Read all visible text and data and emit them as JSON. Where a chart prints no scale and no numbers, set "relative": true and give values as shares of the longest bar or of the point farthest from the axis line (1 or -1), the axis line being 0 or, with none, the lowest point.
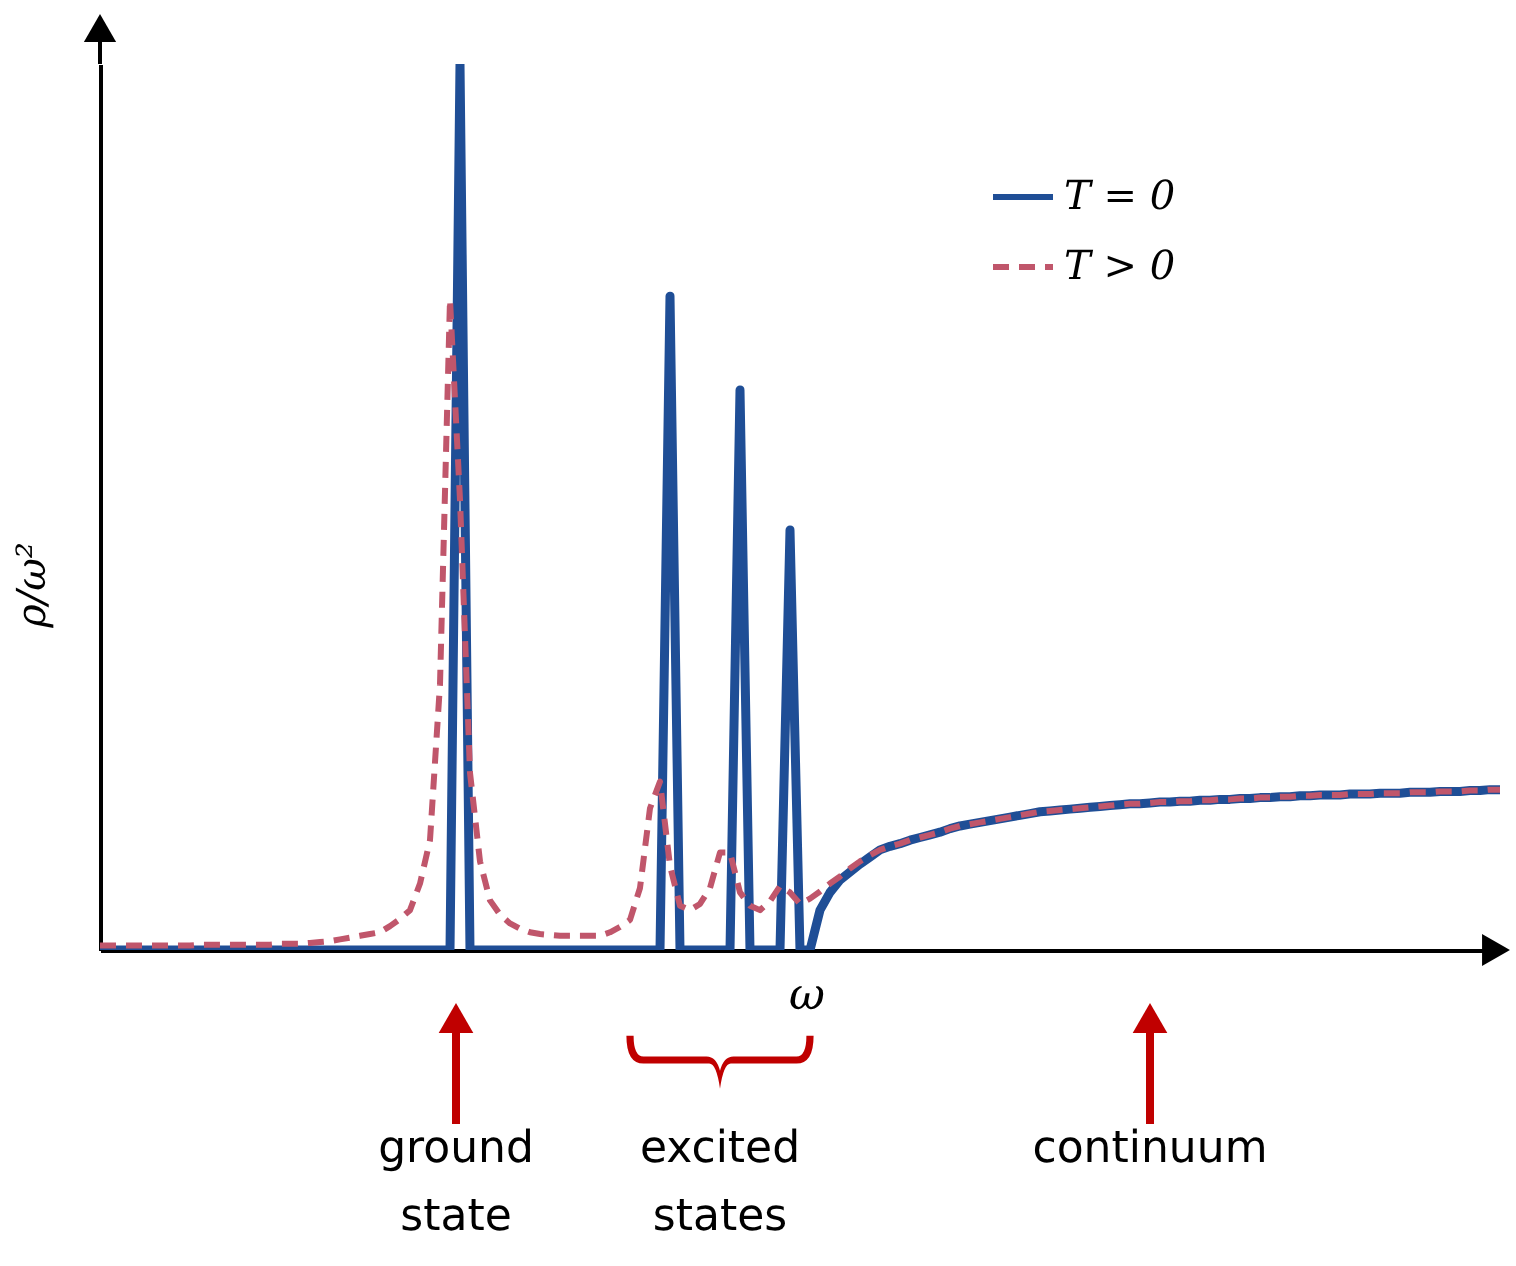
{
  "chart_data": {
    "type": "line",
    "relative": true,
    "xlabel": "ω",
    "ylabel": "ρ/ω²",
    "legend": "top right",
    "categories": [
      null,
      null,
      null,
      null,
      null,
      null,
      null,
      null,
      null,
      null,
      null,
      null,
      null,
      null,
      null,
      null,
      null,
      null,
      null,
      null,
      null,
      null,
      null,
      null,
      null,
      null,
      null,
      null,
      null,
      null,
      null,
      null,
      null,
      null,
      null,
      null,
      null,
      null,
      null,
      null,
      null,
      null,
      null,
      null,
      null,
      null,
      null,
      null,
      null,
      null,
      null,
      null,
      null,
      null,
      null,
      null,
      null,
      null,
      null,
      null,
      null,
      null,
      null,
      null,
      null,
      null,
      null,
      null,
      null,
      null,
      null,
      null,
      null,
      null,
      null,
      null,
      null,
      null,
      null,
      null,
      null,
      null,
      null,
      null,
      null,
      null,
      null,
      null,
      null,
      null,
      null,
      null,
      null,
      null,
      null,
      null,
      null,
      null,
      null,
      null,
      null,
      null,
      null,
      null,
      null,
      null,
      null,
      null,
      null,
      null,
      null,
      null,
      null,
      null,
      null,
      null,
      null,
      null,
      null,
      null,
      null,
      null,
      null,
      null,
      null,
      null,
      null,
      null,
      null,
      null,
      null,
      null,
      null,
      null,
      null,
      null,
      null,
      null,
      null,
      null,
      null
    ],
    "series": [
      {
        "name": "T = 0",
        "color": "#1f4e96",
        "line_style": "solid",
        "values": [
          0,
          0,
          0,
          0,
          0,
          0,
          0,
          0,
          0,
          0,
          0,
          0,
          0,
          0,
          0,
          0,
          0,
          0,
          0,
          0,
          0,
          0,
          0,
          0,
          0,
          0,
          0,
          0,
          0,
          0,
          0,
          0,
          0,
          0,
          0,
          0,
          1,
          0,
          0,
          0,
          0,
          0,
          0,
          0,
          0,
          0,
          0,
          0,
          0,
          0,
          0,
          0,
          0,
          0,
          0,
          0,
          0,
          0.738,
          0,
          0,
          0,
          0,
          0,
          0,
          0.632,
          0,
          0,
          0,
          0,
          0.474,
          0,
          0,
          0.045,
          0.065,
          0.079,
          0.088,
          0.097,
          0.105,
          0.113,
          0.117,
          0.12,
          0.124,
          0.127,
          0.13,
          0.133,
          0.137,
          0.14,
          0.142,
          0.144,
          0.146,
          0.148,
          0.15,
          0.152,
          0.154,
          0.156,
          0.157,
          0.158,
          0.159,
          0.16,
          0.161,
          0.162,
          0.163,
          0.164,
          0.165,
          0.165,
          0.166,
          0.167,
          0.167,
          0.168,
          0.168,
          0.169,
          0.169,
          0.17,
          0.17,
          0.171,
          0.171,
          0.172,
          0.172,
          0.173,
          0.173,
          0.174,
          0.174,
          0.175,
          0.175,
          0.175,
          0.176,
          0.176,
          0.176,
          0.177,
          0.177,
          0.177,
          0.178,
          0.178,
          0.178,
          0.179,
          0.179,
          0.179,
          0.18,
          0.18,
          0.181,
          0.181
        ]
      },
      {
        "name": "T > 0",
        "color": "#c0566b",
        "line_style": "dashed",
        "values": [
          0.005,
          0.005,
          0.005,
          0.005,
          0.005,
          0.005,
          0.005,
          0.005,
          0.005,
          0.005,
          0.006,
          0.006,
          0.006,
          0.006,
          0.006,
          0.006,
          0.006,
          0.006,
          0.007,
          0.007,
          0.007,
          0.008,
          0.009,
          0.01,
          0.012,
          0.014,
          0.016,
          0.018,
          0.02,
          0.027,
          0.035,
          0.045,
          0.075,
          0.124,
          0.3,
          0.734,
          0.508,
          0.2,
          0.1,
          0.056,
          0.04,
          0.03,
          0.024,
          0.02,
          0.018,
          0.017,
          0.016,
          0.016,
          0.016,
          0.016,
          0.016,
          0.02,
          0.026,
          0.034,
          0.07,
          0.16,
          0.19,
          0.095,
          0.05,
          0.045,
          0.052,
          0.07,
          0.11,
          0.11,
          0.065,
          0.05,
          0.045,
          0.055,
          0.072,
          0.065,
          0.052,
          0.058,
          0.066,
          0.075,
          0.083,
          0.092,
          0.1,
          0.107,
          0.113,
          0.117,
          0.12,
          0.124,
          0.127,
          0.13,
          0.133,
          0.137,
          0.14,
          0.142,
          0.144,
          0.146,
          0.148,
          0.15,
          0.152,
          0.154,
          0.156,
          0.157,
          0.158,
          0.159,
          0.16,
          0.161,
          0.162,
          0.163,
          0.164,
          0.165,
          0.165,
          0.166,
          0.167,
          0.167,
          0.168,
          0.168,
          0.169,
          0.169,
          0.17,
          0.17,
          0.171,
          0.171,
          0.172,
          0.172,
          0.173,
          0.173,
          0.174,
          0.174,
          0.175,
          0.175,
          0.175,
          0.176,
          0.176,
          0.176,
          0.177,
          0.177,
          0.177,
          0.178,
          0.178,
          0.178,
          0.179,
          0.179,
          0.179,
          0.18,
          0.18,
          0.181,
          0.181
        ]
      }
    ],
    "annotations": [
      "ground state",
      "excited states",
      "continuum"
    ]
  }
}
